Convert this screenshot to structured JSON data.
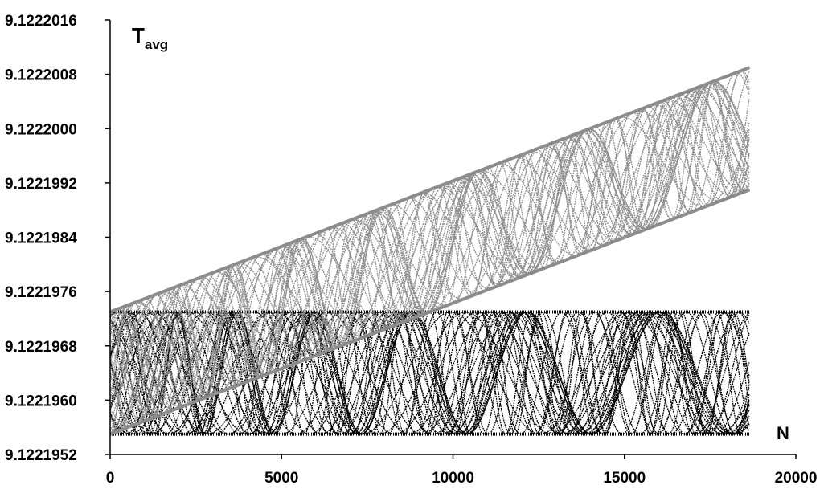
{
  "chart_data": {
    "type": "line",
    "title": "",
    "xlabel": "N",
    "ylabel_main": "T",
    "ylabel_sub": "avg",
    "xlim": [
      0,
      20000
    ],
    "ylim": [
      9.1221952,
      9.1222016
    ],
    "x_ticks": [
      0,
      5000,
      10000,
      15000,
      20000
    ],
    "x_tick_labels": [
      "0",
      "5000",
      "10000",
      "15000",
      "20000"
    ],
    "y_ticks": [
      9.1221952,
      9.122196,
      9.1221968,
      9.1221976,
      9.1221984,
      9.1221992,
      9.1222,
      9.1222008,
      9.1222016
    ],
    "y_tick_labels": [
      "9.1221952",
      "9.1221960",
      "9.1221968",
      "9.1221976",
      "9.1221984",
      "9.1221992",
      "9.1222000",
      "9.1222008",
      "9.1222016"
    ],
    "grid": false,
    "legend": "none",
    "series": [
      {
        "color": "#000000",
        "description_band": "horizontal",
        "x_range": [
          0,
          18650
        ],
        "y_band": [
          9.1221955,
          9.1221973
        ]
      },
      {
        "color": "#8c8c8c",
        "description_band": "rising",
        "x_range": [
          0,
          18650
        ],
        "y_upper": [
          9.1221973,
          9.1222009
        ],
        "y_lower": [
          9.1221955,
          9.1221991
        ]
      }
    ]
  }
}
